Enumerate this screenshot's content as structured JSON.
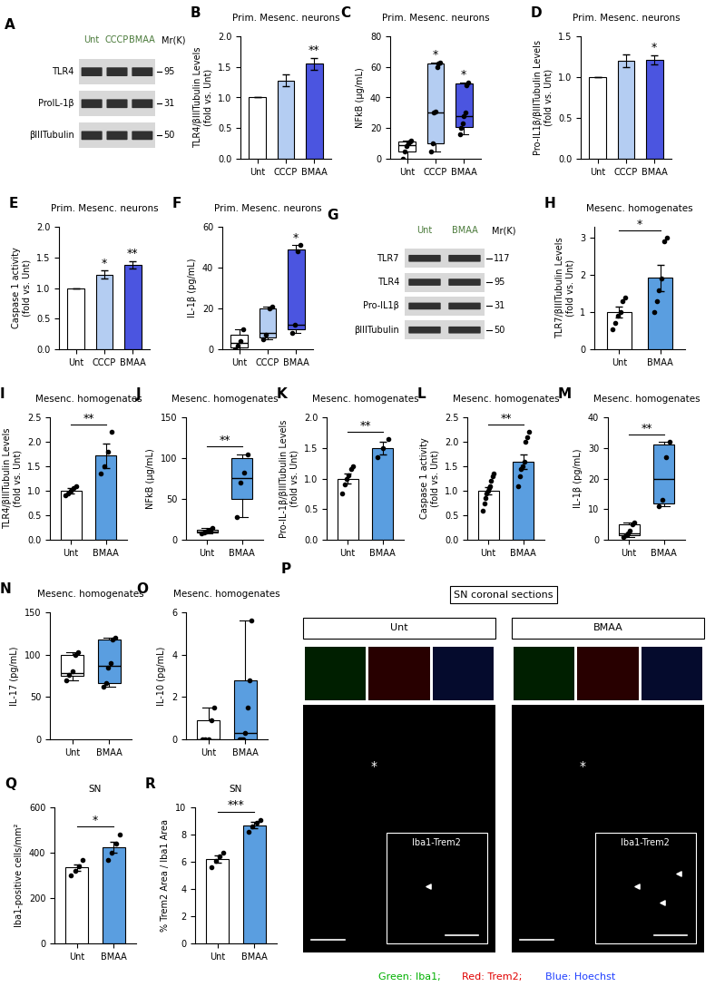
{
  "chart_data": [
    {
      "panel": "A",
      "type": "blot",
      "lanes": [
        "Unt",
        "CCCP",
        "BMAA"
      ],
      "mr_label": "Mr(K)",
      "rows": [
        {
          "name": "TLR4",
          "mr": 95
        },
        {
          "name": "ProIL-1β",
          "mr": 31
        },
        {
          "name": "βIIITubulin",
          "mr": 50
        }
      ]
    },
    {
      "panel": "B",
      "type": "bar",
      "title": "Prim. Mesenc. neurons",
      "ylabel": "TLR4/βIIITubulin Levels\n(fold vs. Unt)",
      "categories": [
        "Unt",
        "CCCP",
        "BMAA"
      ],
      "values": [
        1.0,
        1.28,
        1.55
      ],
      "errors": [
        0,
        0.1,
        0.1
      ],
      "colors": [
        "#ffffff",
        "#b4cdf2",
        "#4b55e0"
      ],
      "significance": [
        null,
        null,
        "**"
      ],
      "ylim": [
        0,
        2
      ],
      "yticks": [
        {
          "value": 0,
          "label": "0.0"
        },
        0.5,
        {
          "value": 1,
          "label": "1.0"
        },
        1.5,
        {
          "value": 2,
          "label": "2.0"
        }
      ]
    },
    {
      "panel": "C",
      "type": "box",
      "title": "Prim. Mesenc. neurons",
      "ylabel": "NFkB (μg/mL)",
      "categories": [
        "Unt",
        "CCCP",
        "BMAA"
      ],
      "colors": [
        "#ffffff",
        "#b4cdf2",
        "#4b55e0"
      ],
      "boxes": [
        {
          "min": 0,
          "q1": 5,
          "median": 9,
          "q3": 11,
          "max": 12
        },
        {
          "min": 5,
          "q1": 10,
          "median": 30,
          "q3": 62,
          "max": 63
        },
        {
          "min": 16,
          "q1": 21,
          "median": 28,
          "q3": 49,
          "max": 50
        }
      ],
      "points": [
        [
          0,
          5,
          8,
          10,
          11,
          12
        ],
        [
          5,
          10,
          30,
          31,
          60,
          62,
          63
        ],
        [
          16,
          20,
          23,
          28,
          30,
          48,
          50
        ]
      ],
      "significance": [
        null,
        "*",
        "*"
      ],
      "ylim": [
        0,
        80
      ],
      "yticks": [
        0,
        20,
        40,
        60,
        80
      ]
    },
    {
      "panel": "D",
      "type": "bar",
      "title": "Prim. Mesenc. neurons",
      "ylabel": "Pro-IL1β/βIIITubulin Levels\n(fold vs. Unt)",
      "categories": [
        "Unt",
        "CCCP",
        "BMAA"
      ],
      "values": [
        1.0,
        1.2,
        1.21
      ],
      "errors": [
        0,
        0.08,
        0.06
      ],
      "colors": [
        "#ffffff",
        "#b4cdf2",
        "#4b55e0"
      ],
      "significance": [
        null,
        null,
        "*"
      ],
      "ylim": [
        0,
        1.5
      ],
      "yticks": [
        {
          "value": 0,
          "label": "0.0"
        },
        0.5,
        {
          "value": 1,
          "label": "1.0"
        },
        1.5
      ]
    },
    {
      "panel": "E",
      "type": "bar",
      "title": "Prim. Mesenc. neurons",
      "ylabel": "Caspase 1 activity\n(fold vs. Unt)",
      "categories": [
        "Unt",
        "CCCP",
        "BMAA"
      ],
      "values": [
        1.0,
        1.22,
        1.38
      ],
      "errors": [
        0,
        0.07,
        0.06
      ],
      "colors": [
        "#ffffff",
        "#b4cdf2",
        "#4b55e0"
      ],
      "significance": [
        null,
        "*",
        "**"
      ],
      "ylim": [
        0,
        2
      ],
      "yticks": [
        {
          "value": 0,
          "label": "0.0"
        },
        0.5,
        {
          "value": 1,
          "label": "1.0"
        },
        1.5,
        {
          "value": 2,
          "label": "2.0"
        }
      ]
    },
    {
      "panel": "F",
      "type": "box",
      "title": "Prim. Mesenc. neurons",
      "ylabel": "IL-1β (pg/mL)",
      "categories": [
        "Unt",
        "CCCP",
        "BMAA"
      ],
      "colors": [
        "#ffffff",
        "#b4cdf2",
        "#4b55e0"
      ],
      "boxes": [
        {
          "min": 0,
          "q1": 1,
          "median": 3,
          "q3": 7,
          "max": 10
        },
        {
          "min": 5,
          "q1": 6,
          "median": 8,
          "q3": 20,
          "max": 21
        },
        {
          "min": 8,
          "q1": 10,
          "median": 12,
          "q3": 49,
          "max": 51
        }
      ],
      "points": [
        [
          0,
          2,
          4,
          10
        ],
        [
          5,
          7,
          20,
          21
        ],
        [
          8,
          12,
          48,
          51
        ]
      ],
      "significance": [
        null,
        null,
        "*"
      ],
      "ylim": [
        0,
        60
      ],
      "yticks": [
        0,
        20,
        40,
        60
      ]
    },
    {
      "panel": "G",
      "type": "blot",
      "lanes": [
        "Unt",
        "BMAA"
      ],
      "mr_label": "Mr(K)",
      "rows": [
        {
          "name": "TLR7",
          "mr": 117
        },
        {
          "name": "TLR4",
          "mr": 95
        },
        {
          "name": "Pro-IL1β",
          "mr": 31
        },
        {
          "name": "βIIITubulin",
          "mr": 50
        }
      ]
    },
    {
      "panel": "H",
      "type": "bar",
      "title": "Mesenc. homogenates",
      "ylabel": "TLR7/βIIITubulin Levels\n(fold vs. Unt)",
      "categories": [
        "Unt",
        "BMAA"
      ],
      "values": [
        1.0,
        1.92
      ],
      "errors": [
        0.15,
        0.35
      ],
      "points": [
        [
          0.55,
          0.7,
          0.9,
          1.0,
          1.3,
          1.4
        ],
        [
          1.0,
          1.3,
          1.6,
          1.9,
          2.9,
          3.0
        ]
      ],
      "colors": [
        "#ffffff",
        "#5a9ee0"
      ],
      "significance": [
        null,
        "*"
      ],
      "ylim": [
        0,
        3.3
      ],
      "yticks": [
        0,
        1,
        2,
        3
      ]
    },
    {
      "panel": "I",
      "type": "bar",
      "title": "Mesenc. homogenates",
      "ylabel": "TLR4/βIIITubulin Levels\n(fold vs. Unt)",
      "categories": [
        "Unt",
        "BMAA"
      ],
      "values": [
        1.0,
        1.72
      ],
      "errors": [
        0.05,
        0.25
      ],
      "points": [
        [
          0.9,
          0.95,
          1.0,
          1.05,
          1.1
        ],
        [
          1.35,
          1.5,
          1.8,
          2.2
        ]
      ],
      "colors": [
        "#ffffff",
        "#5a9ee0"
      ],
      "significance": [
        null,
        "**"
      ],
      "ylim": [
        0,
        2.5
      ],
      "yticks": [
        {
          "value": 0,
          "label": "0.0"
        },
        0.5,
        {
          "value": 1,
          "label": "1.0"
        },
        1.5,
        {
          "value": 2,
          "label": "2.0"
        },
        2.5
      ]
    },
    {
      "panel": "J",
      "type": "box",
      "title": "Mesenc. homogenates",
      "ylabel": "NFkB (μg/mL)",
      "categories": [
        "Unt",
        "BMAA"
      ],
      "colors": [
        "#ffffff",
        "#5a9ee0"
      ],
      "boxes": [
        {
          "min": 8,
          "q1": 9,
          "median": 10,
          "q3": 12,
          "max": 14
        },
        {
          "min": 28,
          "q1": 50,
          "median": 76,
          "q3": 100,
          "max": 105
        }
      ],
      "points": [
        [
          8,
          9,
          10,
          11,
          12,
          14
        ],
        [
          28,
          70,
          82,
          105
        ]
      ],
      "significance": [
        null,
        "**"
      ],
      "ylim": [
        0,
        150
      ],
      "yticks": [
        0,
        50,
        100,
        150
      ]
    },
    {
      "panel": "K",
      "type": "bar",
      "title": "Mesenc. homogenates",
      "ylabel": "Pro-IL-1β/βIIITubulin Levels\n(fold vs. Unt)",
      "categories": [
        "Unt",
        "BMAA"
      ],
      "values": [
        1.0,
        1.5
      ],
      "errors": [
        0.08,
        0.1
      ],
      "points": [
        [
          0.75,
          0.9,
          1.0,
          1.05,
          1.15,
          1.2
        ],
        [
          1.35,
          1.5,
          1.65
        ]
      ],
      "colors": [
        "#ffffff",
        "#5a9ee0"
      ],
      "significance": [
        null,
        "**"
      ],
      "ylim": [
        0,
        2
      ],
      "yticks": [
        {
          "value": 0,
          "label": "0.0"
        },
        0.5,
        {
          "value": 1,
          "label": "1.0"
        },
        1.5,
        {
          "value": 2,
          "label": "2.0"
        }
      ]
    },
    {
      "panel": "L",
      "type": "bar",
      "title": "Mesenc. homogenates",
      "ylabel": "Caspase 1 activity\n(fold vs. Unt)",
      "categories": [
        "Unt",
        "BMAA"
      ],
      "values": [
        1.0,
        1.6
      ],
      "errors": [
        0.08,
        0.15
      ],
      "points": [
        [
          0.6,
          0.75,
          0.85,
          0.95,
          1.0,
          1.05,
          1.1,
          1.2,
          1.3,
          1.35
        ],
        [
          1.1,
          1.3,
          1.45,
          1.5,
          1.6,
          2.0,
          2.1,
          2.2
        ]
      ],
      "colors": [
        "#ffffff",
        "#5a9ee0"
      ],
      "significance": [
        null,
        "**"
      ],
      "ylim": [
        0,
        2.5
      ],
      "yticks": [
        {
          "value": 0,
          "label": "0.0"
        },
        0.5,
        {
          "value": 1,
          "label": "1.0"
        },
        1.5,
        {
          "value": 2,
          "label": "2.0"
        },
        2.5
      ]
    },
    {
      "panel": "M",
      "type": "box",
      "title": "Mesenc. homogenates",
      "ylabel": "IL-1β (pg/mL)",
      "categories": [
        "Unt",
        "BMAA"
      ],
      "colors": [
        "#ffffff",
        "#5a9ee0"
      ],
      "boxes": [
        {
          "min": 1,
          "q1": 1.5,
          "median": 2,
          "q3": 5,
          "max": 5.5
        },
        {
          "min": 11,
          "q1": 12,
          "median": 20,
          "q3": 31,
          "max": 32
        }
      ],
      "points": [
        [
          1,
          1.5,
          2,
          3,
          5,
          5.5
        ],
        [
          11,
          13,
          27,
          32
        ]
      ],
      "significance": [
        null,
        "**"
      ],
      "ylim": [
        0,
        40
      ],
      "yticks": [
        0,
        10,
        20,
        30,
        40
      ]
    },
    {
      "panel": "N",
      "type": "box",
      "title": "Mesenc. homogenates",
      "ylabel": "IL-17 (pg/mL)",
      "categories": [
        "Unt",
        "BMAA"
      ],
      "colors": [
        "#ffffff",
        "#5a9ee0"
      ],
      "boxes": [
        {
          "min": 70,
          "q1": 75,
          "median": 78,
          "q3": 100,
          "max": 103
        },
        {
          "min": 62,
          "q1": 66,
          "median": 87,
          "q3": 118,
          "max": 120
        }
      ],
      "points": [
        [
          70,
          76,
          80,
          100,
          103
        ],
        [
          62,
          66,
          85,
          90,
          118,
          120
        ]
      ],
      "ylim": [
        0,
        150
      ],
      "yticks": [
        0,
        50,
        100,
        150
      ]
    },
    {
      "panel": "O",
      "type": "box",
      "title": "Mesenc. homogenates",
      "ylabel": "IL-10 (pg/mL)",
      "categories": [
        "Unt",
        "BMAA"
      ],
      "colors": [
        "#ffffff",
        "#5a9ee0"
      ],
      "boxes": [
        {
          "min": 0,
          "q1": 0,
          "median": 0,
          "q3": 0.9,
          "max": 1.5
        },
        {
          "min": 0,
          "q1": 0,
          "median": 0.3,
          "q3": 2.8,
          "max": 5.6
        }
      ],
      "points": [
        [
          0,
          0,
          0,
          0.9,
          1.5
        ],
        [
          0,
          0,
          0,
          0.3,
          1.5,
          2.8,
          5.6
        ]
      ],
      "ylim": [
        0,
        6
      ],
      "yticks": [
        0,
        2,
        4,
        6
      ]
    },
    {
      "panel": "P",
      "type": "image",
      "title": "SN coronal sections",
      "groups": [
        "Unt",
        "BMAA"
      ],
      "inset": "Iba1-Trem2",
      "mark": "*",
      "channels": [
        {
          "text": "Green: Iba1;",
          "color": "#00b000"
        },
        {
          "text": "Red: Trem2;",
          "color": "#e00000"
        },
        {
          "text": "Blue: Hoechst",
          "color": "#2040ff"
        }
      ]
    },
    {
      "panel": "Q",
      "type": "bar",
      "title": "SN",
      "ylabel": "Iba1-positive cells/mm²",
      "categories": [
        "Unt",
        "BMAA"
      ],
      "values": [
        335,
        425
      ],
      "errors": [
        15,
        25
      ],
      "points": [
        [
          300,
          320,
          340,
          370
        ],
        [
          370,
          400,
          440,
          480
        ]
      ],
      "colors": [
        "#ffffff",
        "#5a9ee0"
      ],
      "significance": [
        null,
        "*"
      ],
      "ylim": [
        0,
        600
      ],
      "yticks": [
        0,
        200,
        400,
        600
      ]
    },
    {
      "panel": "R",
      "type": "bar",
      "title": "SN",
      "ylabel": "% Trem2 Area / Iba1 Area",
      "categories": [
        "Unt",
        "BMAA"
      ],
      "values": [
        6.2,
        8.7
      ],
      "errors": [
        0.25,
        0.25
      ],
      "points": [
        [
          5.6,
          6.1,
          6.4,
          6.7
        ],
        [
          8.2,
          8.6,
          8.9,
          9.1
        ]
      ],
      "colors": [
        "#ffffff",
        "#5a9ee0"
      ],
      "significance": [
        null,
        "***"
      ],
      "ylim": [
        0,
        10
      ],
      "yticks": [
        0,
        2,
        4,
        6,
        8,
        10
      ]
    }
  ]
}
